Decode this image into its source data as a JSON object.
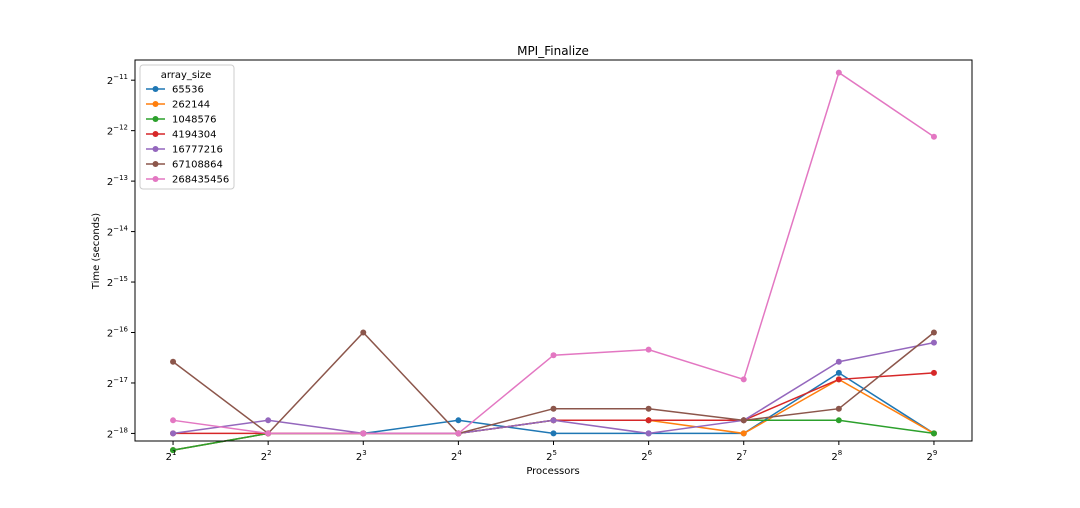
{
  "chart_data": {
    "type": "line",
    "title": "MPI_Finalize",
    "xlabel": "Processors",
    "ylabel": "Time (seconds)",
    "x_scale": "log2",
    "y_scale": "log2",
    "x": [
      2,
      4,
      8,
      16,
      32,
      64,
      128,
      256,
      512
    ],
    "x_tick_exponents": [
      "1",
      "2",
      "3",
      "4",
      "5",
      "6",
      "7",
      "8",
      "9"
    ],
    "y_tick_exponents": [
      "−18",
      "−17",
      "−16",
      "−15",
      "−14",
      "−13",
      "−12",
      "−11"
    ],
    "xlim_log2": [
      0.6,
      9.4
    ],
    "ylim_log2": [
      -18.15,
      -10.6
    ],
    "grid": false,
    "legend": {
      "title": "array_size",
      "placement": "top-left"
    },
    "series": [
      {
        "name": "65536",
        "color": "#1f77b4",
        "log2_values": [
          -18.33,
          -18.0,
          -18.0,
          -17.74,
          -18.0,
          -18.0,
          -18.0,
          -16.8,
          -18.0
        ]
      },
      {
        "name": "262144",
        "color": "#ff7f0e",
        "log2_values": [
          -18.33,
          -18.0,
          -18.0,
          -18.0,
          -17.74,
          -17.74,
          -18.0,
          -16.93,
          -18.0
        ]
      },
      {
        "name": "1048576",
        "color": "#2ca02c",
        "log2_values": [
          -18.33,
          -18.0,
          -18.0,
          -18.0,
          -17.74,
          -17.74,
          -17.74,
          -17.74,
          -18.0
        ]
      },
      {
        "name": "4194304",
        "color": "#d62728",
        "log2_values": [
          -18.0,
          -18.0,
          -18.0,
          -18.0,
          -17.74,
          -17.74,
          -17.74,
          -16.93,
          -16.8
        ]
      },
      {
        "name": "16777216",
        "color": "#9467bd",
        "log2_values": [
          -18.0,
          -17.74,
          -18.0,
          -18.0,
          -17.74,
          -18.0,
          -17.74,
          -16.58,
          -16.2
        ]
      },
      {
        "name": "67108864",
        "color": "#8c564b",
        "log2_values": [
          -16.58,
          -18.0,
          -16.0,
          -18.0,
          -17.51,
          -17.51,
          -17.74,
          -17.51,
          -16.0
        ]
      },
      {
        "name": "268435456",
        "color": "#e377c2",
        "log2_values": [
          -17.74,
          -18.0,
          -18.0,
          -18.0,
          -16.45,
          -16.34,
          -16.93,
          -10.85,
          -12.12
        ]
      }
    ]
  }
}
